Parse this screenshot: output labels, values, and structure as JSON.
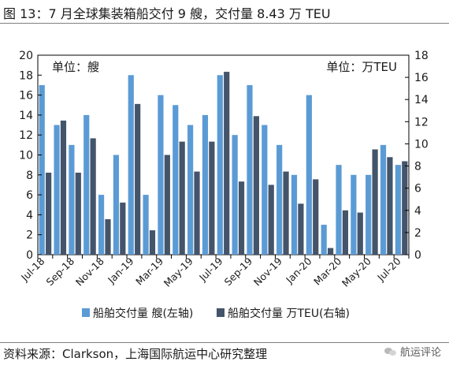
{
  "header": {
    "title": "图 13：7 月全球集装箱船交付 9 艘，交付量 8.43 万 TEU"
  },
  "footer": {
    "source": "资料来源：Clarkson，上海国际航运中心研究整理",
    "watermark": "航运评论",
    "watermark_icon": "wechat-icon"
  },
  "chart_data": {
    "type": "bar",
    "title": "",
    "unit_left": "单位：艘",
    "unit_right": "单位：万TEU",
    "categories": [
      "Jul-18",
      "Aug-18",
      "Sep-18",
      "Oct-18",
      "Nov-18",
      "Dec-18",
      "Jan-19",
      "Feb-19",
      "Mar-19",
      "Apr-19",
      "May-19",
      "Jun-19",
      "Jul-19",
      "Aug-19",
      "Sep-19",
      "Oct-19",
      "Nov-19",
      "Dec-19",
      "Jan-20",
      "Feb-20",
      "Mar-20",
      "Apr-20",
      "May-20",
      "Jun-20",
      "Jul-20"
    ],
    "tick_labels": [
      "Jul-18",
      "Sep-18",
      "Nov-18",
      "Jan-19",
      "Mar-19",
      "May-19",
      "Jul-19",
      "Sep-19",
      "Nov-19",
      "Jan-20",
      "Mar-20",
      "May-20",
      "Jul-20"
    ],
    "series": [
      {
        "name": "船舶交付量 艘(左轴)",
        "axis": "left",
        "color": "#5b9bd5",
        "values": [
          17,
          13,
          11,
          14,
          6,
          10,
          18,
          6,
          16,
          15,
          13,
          14,
          18,
          12,
          17,
          13,
          11,
          8,
          16,
          3,
          9,
          8,
          8,
          11,
          9
        ]
      },
      {
        "name": "船舶交付量 万TEU(右轴)",
        "axis": "right",
        "color": "#44546a",
        "values": [
          7.4,
          12.1,
          7.4,
          10.5,
          3.2,
          4.7,
          13.6,
          2.2,
          9.0,
          10.2,
          7.5,
          10.2,
          16.5,
          6.6,
          12.5,
          6.3,
          7.5,
          4.6,
          6.8,
          0.6,
          4.0,
          3.8,
          9.5,
          8.8,
          8.43
        ]
      }
    ],
    "left_axis": {
      "min": 0,
      "max": 20,
      "ticks": [
        "0",
        "2",
        "4",
        "6",
        "8",
        "10",
        "12",
        "14",
        "16",
        "18",
        "20"
      ]
    },
    "right_axis": {
      "min": 0,
      "max": 18,
      "ticks": [
        "0",
        "2",
        "4",
        "6",
        "8",
        "10",
        "12",
        "14",
        "16",
        "18"
      ]
    },
    "legend_position": "bottom",
    "grid": false
  }
}
